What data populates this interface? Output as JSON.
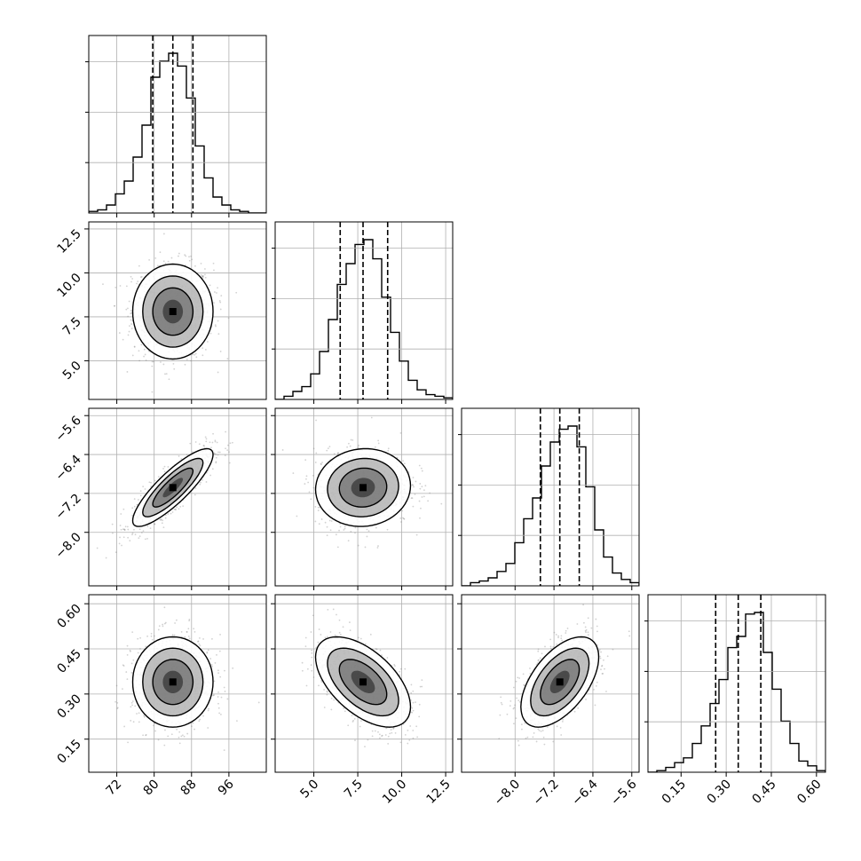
{
  "chart_data": {
    "type": "corner",
    "description_free": true,
    "parameters": [
      {
        "range": [
          66,
          104
        ],
        "ticks": [
          72,
          80,
          88,
          96
        ],
        "tick_labels": [
          "72",
          "80",
          "88",
          "96"
        ],
        "mean": 84.0,
        "sd": 4.3,
        "quantiles": [
          79.7,
          84.0,
          88.3
        ]
      },
      {
        "range": [
          2.8,
          12.9
        ],
        "ticks": [
          5.0,
          7.5,
          10.0,
          12.5
        ],
        "tick_labels": [
          "5.0",
          "7.5",
          "10.0",
          "12.5"
        ],
        "mean": 7.8,
        "sd": 1.35,
        "quantiles": [
          6.5,
          7.8,
          9.2
        ]
      },
      {
        "range": [
          -9.1,
          -5.45
        ],
        "ticks": [
          -8.0,
          -7.2,
          -6.4,
          -5.6
        ],
        "tick_labels": [
          "−8.0",
          "−7.2",
          "−6.4",
          "−5.6"
        ],
        "mean": -7.08,
        "sd": 0.4,
        "quantiles": [
          -7.48,
          -7.08,
          -6.68
        ]
      },
      {
        "range": [
          0.04,
          0.63
        ],
        "ticks": [
          0.15,
          0.3,
          0.45,
          0.6
        ],
        "tick_labels": [
          "0.15",
          "0.30",
          "0.45",
          "0.60"
        ],
        "mean": 0.34,
        "sd": 0.075,
        "quantiles": [
          0.265,
          0.34,
          0.415
        ]
      }
    ],
    "correlations": [
      [
        1.0,
        0.0,
        0.85,
        0.0
      ],
      [
        0.0,
        1.0,
        0.05,
        -0.55
      ],
      [
        0.85,
        0.05,
        1.0,
        0.55
      ],
      [
        0.0,
        -0.55,
        0.55,
        1.0
      ]
    ],
    "histograms": [
      [
        0.01,
        0.02,
        0.05,
        0.12,
        0.2,
        0.35,
        0.55,
        0.85,
        0.95,
        1.0,
        0.92,
        0.72,
        0.42,
        0.22,
        0.1,
        0.05,
        0.02,
        0.01,
        0.0,
        0.0
      ],
      [
        0.0,
        0.02,
        0.05,
        0.08,
        0.16,
        0.3,
        0.5,
        0.72,
        0.85,
        0.97,
        1.0,
        0.88,
        0.64,
        0.42,
        0.24,
        0.12,
        0.06,
        0.03,
        0.02,
        0.01
      ],
      [
        0.0,
        0.02,
        0.03,
        0.05,
        0.09,
        0.14,
        0.27,
        0.42,
        0.55,
        0.75,
        0.9,
        0.98,
        1.0,
        0.87,
        0.62,
        0.35,
        0.18,
        0.08,
        0.04,
        0.02
      ],
      [
        0.0,
        0.01,
        0.03,
        0.06,
        0.09,
        0.18,
        0.29,
        0.43,
        0.58,
        0.78,
        0.85,
        0.99,
        1.0,
        0.75,
        0.52,
        0.32,
        0.18,
        0.07,
        0.04,
        0.01
      ]
    ],
    "contour_levels_sigma": [
      0.5,
      1.0,
      1.5,
      2.0
    ],
    "quantile_lines": "dashed",
    "grid": true,
    "point_color": "#7f7f7f",
    "line_color": "#000000"
  }
}
